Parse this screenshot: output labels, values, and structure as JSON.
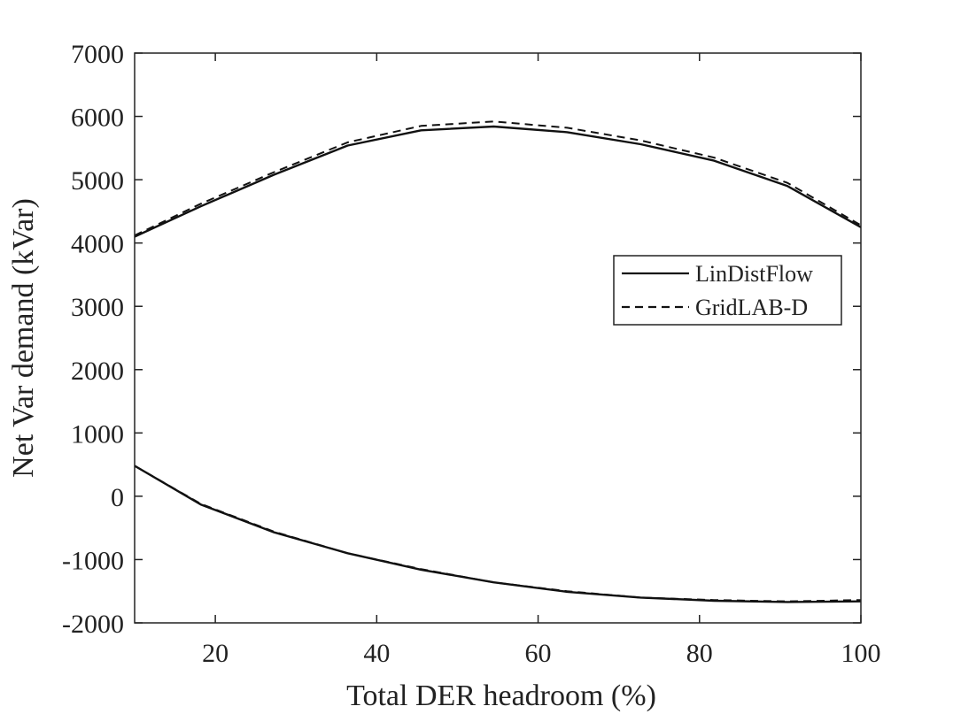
{
  "chart_data": {
    "type": "line",
    "title": "",
    "xlabel": "Total DER headroom (%)",
    "ylabel": "Net Var demand (kVar)",
    "xlim": [
      10,
      100
    ],
    "ylim": [
      -2000,
      7000
    ],
    "xticks": [
      20,
      40,
      60,
      80,
      100
    ],
    "yticks": [
      -2000,
      -1000,
      0,
      1000,
      2000,
      3000,
      4000,
      5000,
      6000,
      7000
    ],
    "grid": false,
    "legend_position": "right",
    "series": [
      {
        "name": "LinDistFlow",
        "style": "solid",
        "curves": [
          {
            "x": [
              10,
              18.2,
              27.3,
              36.4,
              45.5,
              54.5,
              63.6,
              72.7,
              81.8,
              90.9,
              100
            ],
            "y": [
              4100,
              4580,
              5080,
              5540,
              5780,
              5840,
              5750,
              5560,
              5300,
              4900,
              4250
            ]
          },
          {
            "x": [
              10,
              18.2,
              27.3,
              36.4,
              45.5,
              54.5,
              63.6,
              72.7,
              81.8,
              90.9,
              100
            ],
            "y": [
              480,
              -130,
              -570,
              -900,
              -1160,
              -1360,
              -1510,
              -1600,
              -1650,
              -1670,
              -1660
            ]
          }
        ]
      },
      {
        "name": "GridLAB-D",
        "style": "dashed",
        "curves": [
          {
            "x": [
              10,
              18.2,
              27.3,
              36.4,
              45.5,
              54.5,
              63.6,
              72.7,
              81.8,
              90.9,
              100
            ],
            "y": [
              4120,
              4620,
              5120,
              5590,
              5850,
              5920,
              5820,
              5620,
              5350,
              4950,
              4280
            ]
          },
          {
            "x": [
              10,
              18.2,
              27.3,
              36.4,
              45.5,
              54.5,
              63.6,
              72.7,
              81.8,
              90.9,
              100
            ],
            "y": [
              480,
              -120,
              -560,
              -900,
              -1150,
              -1360,
              -1500,
              -1600,
              -1640,
              -1660,
              -1640
            ]
          }
        ]
      }
    ]
  }
}
